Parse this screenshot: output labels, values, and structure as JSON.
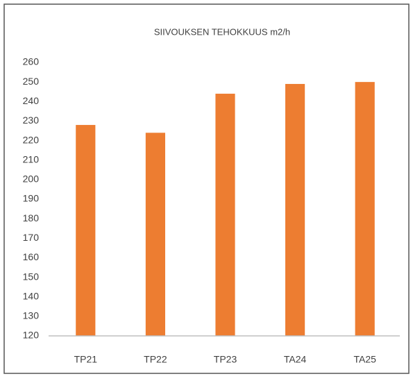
{
  "chart_data": {
    "type": "bar",
    "title": "SIIVOUKSEN TEHOKKUUS  m2/h",
    "categories": [
      "TP21",
      "TP22",
      "TP23",
      "TA24",
      "TA25"
    ],
    "values": [
      228,
      224,
      244,
      249,
      250
    ],
    "color": "#ed7d31",
    "ylim": [
      120,
      260
    ],
    "yticks": [
      120,
      130,
      140,
      150,
      160,
      170,
      180,
      190,
      200,
      210,
      220,
      230,
      240,
      250,
      260
    ],
    "grid": false
  }
}
